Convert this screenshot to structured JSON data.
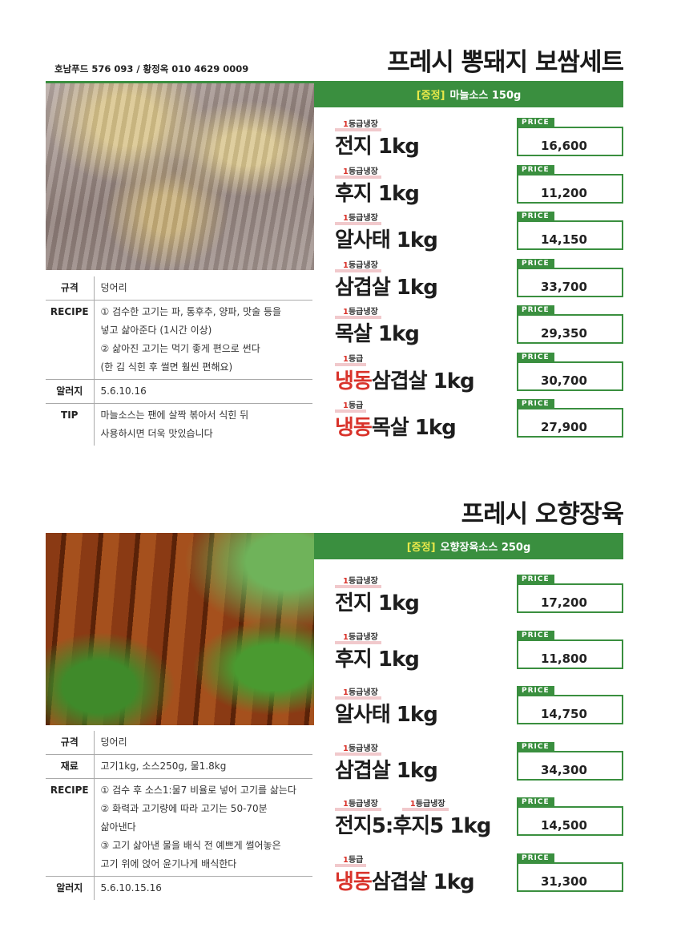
{
  "contact": "호남푸드 576 093 / 황정옥 010 4629 0009",
  "price_label": "PRICE",
  "sections": [
    {
      "title": "프레시 뽕돼지 보쌈세트",
      "gift_label": "[증정]",
      "gift": "마늘소스 150g",
      "items": [
        {
          "tags": [
            {
              "num": "1",
              "text": "등급냉장"
            }
          ],
          "prefix": "",
          "name": "전지 1kg",
          "price": "16,600"
        },
        {
          "tags": [
            {
              "num": "1",
              "text": "등급냉장"
            }
          ],
          "prefix": "",
          "name": "후지 1kg",
          "price": "11,200"
        },
        {
          "tags": [
            {
              "num": "1",
              "text": "등급냉장"
            }
          ],
          "prefix": "",
          "name": "알사태 1kg",
          "price": "14,150"
        },
        {
          "tags": [
            {
              "num": "1",
              "text": "등급냉장"
            }
          ],
          "prefix": "",
          "name": "삼겹살 1kg",
          "price": "33,700"
        },
        {
          "tags": [
            {
              "num": "1",
              "text": "등급냉장"
            }
          ],
          "prefix": "",
          "name": "목살 1kg",
          "price": "29,350"
        },
        {
          "tags": [
            {
              "num": "1",
              "text": "등급"
            }
          ],
          "prefix": "냉동",
          "name": "삼겹살 1kg",
          "price": "30,700"
        },
        {
          "tags": [
            {
              "num": "1",
              "text": "등급"
            }
          ],
          "prefix": "냉동",
          "name": "목살 1kg",
          "price": "27,900"
        }
      ],
      "spec": [
        {
          "key": "규격",
          "lines": [
            "덩어리"
          ]
        },
        {
          "key": "RECIPE",
          "lines": [
            "① 검수한 고기는 파, 통후추, 양파, 맛술 등을",
            "넣고 삶아준다 (1시간 이상)",
            "② 삶아진 고기는 먹기 좋게 편으로 썬다",
            "(한 김 식힌 후 썰면 훨씬 편해요)"
          ]
        },
        {
          "key": "알러지",
          "lines": [
            "5.6.10.16"
          ]
        },
        {
          "key": "TIP",
          "lines": [
            "마늘소스는 팬에 살짝 볶아서 식힌 뒤",
            "사용하시면 더욱 맛있습니다"
          ]
        }
      ]
    },
    {
      "title": "프레시 오향장육",
      "gift_label": "[증정]",
      "gift": "오향장육소스 250g",
      "items": [
        {
          "tags": [
            {
              "num": "1",
              "text": "등급냉장"
            }
          ],
          "prefix": "",
          "name": "전지 1kg",
          "price": "17,200"
        },
        {
          "tags": [
            {
              "num": "1",
              "text": "등급냉장"
            }
          ],
          "prefix": "",
          "name": "후지 1kg",
          "price": "11,800"
        },
        {
          "tags": [
            {
              "num": "1",
              "text": "등급냉장"
            }
          ],
          "prefix": "",
          "name": "알사태 1kg",
          "price": "14,750"
        },
        {
          "tags": [
            {
              "num": "1",
              "text": "등급냉장"
            }
          ],
          "prefix": "",
          "name": "삼겹살 1kg",
          "price": "34,300"
        },
        {
          "tags": [
            {
              "num": "1",
              "text": "등급냉장"
            },
            {
              "num": "1",
              "text": "등급냉장"
            }
          ],
          "prefix": "",
          "name": "전지5:후지5 1kg",
          "price": "14,500"
        },
        {
          "tags": [
            {
              "num": "1",
              "text": "등급"
            }
          ],
          "prefix": "냉동",
          "name": "삼겹살 1kg",
          "price": "31,300"
        }
      ],
      "spec": [
        {
          "key": "규격",
          "lines": [
            "덩어리"
          ]
        },
        {
          "key": "재료",
          "lines": [
            "고기1kg, 소스250g, 물1.8kg"
          ]
        },
        {
          "key": "RECIPE",
          "lines": [
            "① 검수 후 소스1:물7 비율로 넣어 고기를 삶는다",
            "② 화력과 고기량에 따라 고기는 50-70분",
            "삶아낸다",
            "③ 고기 삶아낸 물을 배식 전 예쁘게 썰어놓은",
            "고기 위에 얹어 윤기나게 배식한다"
          ]
        },
        {
          "key": "알러지",
          "lines": [
            "5.6.10.15.16"
          ]
        }
      ]
    }
  ]
}
